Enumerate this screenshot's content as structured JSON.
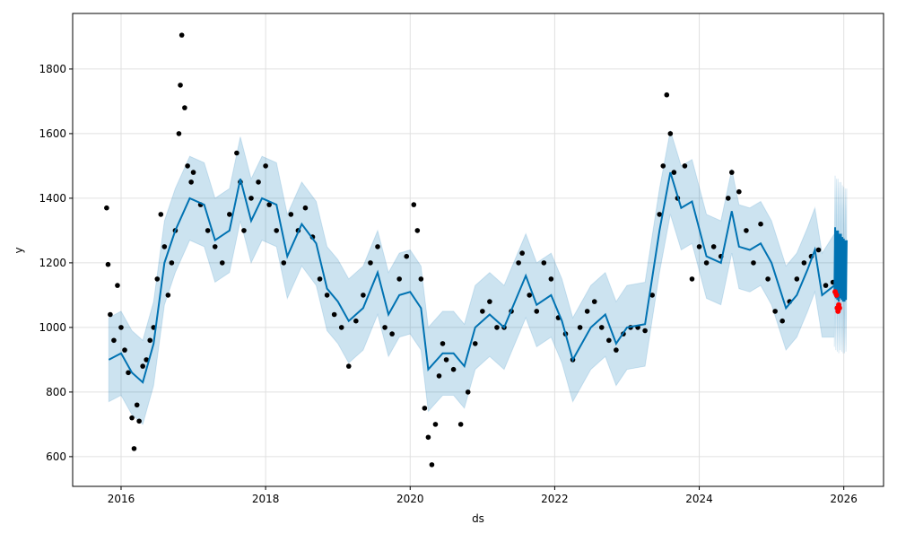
{
  "chart_data": {
    "type": "line",
    "title": "",
    "xlabel": "ds",
    "ylabel": "y",
    "xlim": [
      2015.33,
      2026.55
    ],
    "ylim": [
      508,
      1972
    ],
    "grid": true,
    "x_ticks": [
      2016,
      2018,
      2020,
      2022,
      2024,
      2026
    ],
    "x_tick_labels": [
      "2016",
      "2018",
      "2020",
      "2022",
      "2024",
      "2026"
    ],
    "y_ticks": [
      600,
      800,
      1000,
      1200,
      1400,
      1600,
      1800
    ],
    "y_tick_labels": [
      "600",
      "800",
      "1000",
      "1200",
      "1400",
      "1600",
      "1800"
    ],
    "colors": {
      "forecast": "#0072B2",
      "band": "#0072B2",
      "observed": "#000000",
      "test": "#ff0000"
    },
    "interval_halfwidth": 130,
    "yhat": [
      [
        2015.83,
        900
      ],
      [
        2016.0,
        920
      ],
      [
        2016.15,
        860
      ],
      [
        2016.3,
        830
      ],
      [
        2016.45,
        950
      ],
      [
        2016.6,
        1200
      ],
      [
        2016.75,
        1300
      ],
      [
        2016.95,
        1400
      ],
      [
        2017.15,
        1380
      ],
      [
        2017.3,
        1270
      ],
      [
        2017.5,
        1300
      ],
      [
        2017.65,
        1460
      ],
      [
        2017.8,
        1330
      ],
      [
        2017.95,
        1400
      ],
      [
        2018.15,
        1380
      ],
      [
        2018.3,
        1220
      ],
      [
        2018.5,
        1320
      ],
      [
        2018.7,
        1260
      ],
      [
        2018.85,
        1120
      ],
      [
        2019.0,
        1080
      ],
      [
        2019.15,
        1020
      ],
      [
        2019.35,
        1060
      ],
      [
        2019.55,
        1170
      ],
      [
        2019.7,
        1040
      ],
      [
        2019.85,
        1100
      ],
      [
        2020.0,
        1110
      ],
      [
        2020.15,
        1060
      ],
      [
        2020.25,
        870
      ],
      [
        2020.45,
        920
      ],
      [
        2020.6,
        920
      ],
      [
        2020.75,
        880
      ],
      [
        2020.9,
        1000
      ],
      [
        2021.1,
        1040
      ],
      [
        2021.3,
        1000
      ],
      [
        2021.45,
        1080
      ],
      [
        2021.6,
        1160
      ],
      [
        2021.75,
        1070
      ],
      [
        2021.95,
        1100
      ],
      [
        2022.1,
        1020
      ],
      [
        2022.25,
        900
      ],
      [
        2022.5,
        1000
      ],
      [
        2022.7,
        1040
      ],
      [
        2022.85,
        950
      ],
      [
        2023.0,
        1000
      ],
      [
        2023.25,
        1010
      ],
      [
        2023.45,
        1300
      ],
      [
        2023.6,
        1480
      ],
      [
        2023.75,
        1370
      ],
      [
        2023.9,
        1390
      ],
      [
        2024.1,
        1220
      ],
      [
        2024.3,
        1200
      ],
      [
        2024.45,
        1360
      ],
      [
        2024.55,
        1250
      ],
      [
        2024.7,
        1240
      ],
      [
        2024.85,
        1260
      ],
      [
        2025.0,
        1200
      ],
      [
        2025.2,
        1060
      ],
      [
        2025.35,
        1100
      ],
      [
        2025.5,
        1180
      ],
      [
        2025.6,
        1240
      ],
      [
        2025.7,
        1100
      ],
      [
        2025.87,
        1130
      ]
    ],
    "forecast": [
      [
        2025.87,
        1100
      ],
      [
        2025.88,
        1310
      ],
      [
        2025.89,
        1090
      ],
      [
        2025.9,
        1300
      ],
      [
        2025.91,
        1085
      ],
      [
        2025.92,
        1300
      ],
      [
        2025.93,
        1080
      ],
      [
        2025.94,
        1290
      ],
      [
        2025.95,
        1090
      ],
      [
        2025.96,
        1290
      ],
      [
        2025.97,
        1085
      ],
      [
        2025.98,
        1280
      ],
      [
        2025.99,
        1080
      ],
      [
        2026.0,
        1275
      ],
      [
        2026.01,
        1080
      ],
      [
        2026.02,
        1270
      ],
      [
        2026.03,
        1085
      ],
      [
        2026.04,
        1270
      ]
    ],
    "observed": [
      [
        2015.8,
        1370
      ],
      [
        2015.82,
        1195
      ],
      [
        2015.85,
        1040
      ],
      [
        2015.9,
        960
      ],
      [
        2015.95,
        1130
      ],
      [
        2016.0,
        1000
      ],
      [
        2016.05,
        930
      ],
      [
        2016.1,
        860
      ],
      [
        2016.15,
        720
      ],
      [
        2016.18,
        625
      ],
      [
        2016.22,
        760
      ],
      [
        2016.25,
        710
      ],
      [
        2016.3,
        880
      ],
      [
        2016.35,
        900
      ],
      [
        2016.4,
        960
      ],
      [
        2016.45,
        1000
      ],
      [
        2016.5,
        1150
      ],
      [
        2016.55,
        1350
      ],
      [
        2016.6,
        1250
      ],
      [
        2016.65,
        1100
      ],
      [
        2016.7,
        1200
      ],
      [
        2016.75,
        1300
      ],
      [
        2016.8,
        1600
      ],
      [
        2016.82,
        1750
      ],
      [
        2016.84,
        1905
      ],
      [
        2016.88,
        1680
      ],
      [
        2016.92,
        1500
      ],
      [
        2016.97,
        1450
      ],
      [
        2017.0,
        1480
      ],
      [
        2017.1,
        1380
      ],
      [
        2017.2,
        1300
      ],
      [
        2017.3,
        1250
      ],
      [
        2017.4,
        1200
      ],
      [
        2017.5,
        1350
      ],
      [
        2017.6,
        1540
      ],
      [
        2017.65,
        1450
      ],
      [
        2017.7,
        1300
      ],
      [
        2017.8,
        1400
      ],
      [
        2017.9,
        1450
      ],
      [
        2018.0,
        1500
      ],
      [
        2018.05,
        1380
      ],
      [
        2018.15,
        1300
      ],
      [
        2018.25,
        1200
      ],
      [
        2018.35,
        1350
      ],
      [
        2018.45,
        1300
      ],
      [
        2018.55,
        1370
      ],
      [
        2018.65,
        1280
      ],
      [
        2018.75,
        1150
      ],
      [
        2018.85,
        1100
      ],
      [
        2018.95,
        1040
      ],
      [
        2019.05,
        1000
      ],
      [
        2019.15,
        880
      ],
      [
        2019.25,
        1020
      ],
      [
        2019.35,
        1100
      ],
      [
        2019.45,
        1200
      ],
      [
        2019.55,
        1250
      ],
      [
        2019.65,
        1000
      ],
      [
        2019.75,
        980
      ],
      [
        2019.85,
        1150
      ],
      [
        2019.95,
        1220
      ],
      [
        2020.05,
        1380
      ],
      [
        2020.1,
        1300
      ],
      [
        2020.15,
        1150
      ],
      [
        2020.2,
        750
      ],
      [
        2020.25,
        660
      ],
      [
        2020.3,
        575
      ],
      [
        2020.35,
        700
      ],
      [
        2020.4,
        850
      ],
      [
        2020.45,
        950
      ],
      [
        2020.5,
        900
      ],
      [
        2020.6,
        870
      ],
      [
        2020.7,
        700
      ],
      [
        2020.8,
        800
      ],
      [
        2020.9,
        950
      ],
      [
        2021.0,
        1050
      ],
      [
        2021.1,
        1080
      ],
      [
        2021.2,
        1000
      ],
      [
        2021.3,
        1000
      ],
      [
        2021.4,
        1050
      ],
      [
        2021.5,
        1200
      ],
      [
        2021.55,
        1230
      ],
      [
        2021.65,
        1100
      ],
      [
        2021.75,
        1050
      ],
      [
        2021.85,
        1200
      ],
      [
        2021.95,
        1150
      ],
      [
        2022.05,
        1030
      ],
      [
        2022.15,
        980
      ],
      [
        2022.25,
        900
      ],
      [
        2022.35,
        1000
      ],
      [
        2022.45,
        1050
      ],
      [
        2022.55,
        1080
      ],
      [
        2022.65,
        1000
      ],
      [
        2022.75,
        960
      ],
      [
        2022.85,
        930
      ],
      [
        2022.95,
        980
      ],
      [
        2023.05,
        1000
      ],
      [
        2023.15,
        1000
      ],
      [
        2023.25,
        990
      ],
      [
        2023.35,
        1100
      ],
      [
        2023.45,
        1350
      ],
      [
        2023.5,
        1500
      ],
      [
        2023.55,
        1720
      ],
      [
        2023.6,
        1600
      ],
      [
        2023.65,
        1480
      ],
      [
        2023.7,
        1400
      ],
      [
        2023.8,
        1500
      ],
      [
        2023.9,
        1150
      ],
      [
        2024.0,
        1250
      ],
      [
        2024.1,
        1200
      ],
      [
        2024.2,
        1250
      ],
      [
        2024.3,
        1220
      ],
      [
        2024.4,
        1400
      ],
      [
        2024.45,
        1480
      ],
      [
        2024.55,
        1420
      ],
      [
        2024.65,
        1300
      ],
      [
        2024.75,
        1200
      ],
      [
        2024.85,
        1320
      ],
      [
        2024.95,
        1150
      ],
      [
        2025.05,
        1050
      ],
      [
        2025.15,
        1020
      ],
      [
        2025.25,
        1080
      ],
      [
        2025.35,
        1150
      ],
      [
        2025.45,
        1200
      ],
      [
        2025.55,
        1220
      ],
      [
        2025.65,
        1240
      ],
      [
        2025.75,
        1130
      ],
      [
        2025.85,
        1140
      ]
    ],
    "test_points": [
      [
        2025.88,
        1110
      ],
      [
        2025.9,
        1100
      ],
      [
        2025.91,
        1060
      ],
      [
        2025.92,
        1050
      ],
      [
        2025.93,
        1070
      ],
      [
        2025.94,
        1060
      ]
    ]
  }
}
